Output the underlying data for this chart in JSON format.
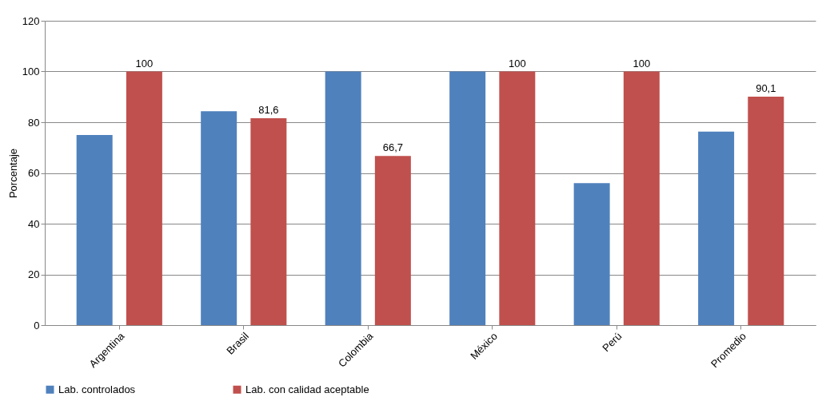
{
  "chart_data": {
    "type": "bar",
    "ylabel": "Porcentaje",
    "categories": [
      "Argentina",
      "Brasil",
      "Colombia",
      "México",
      "Perú",
      "Promedio"
    ],
    "series": [
      {
        "name": "Lab. controlados",
        "color": "#4f81bd",
        "values": [
          75,
          84.3,
          100,
          100,
          56,
          76.3
        ]
      },
      {
        "name": "Lab. con calidad aceptable",
        "color": "#c0504d",
        "values": [
          100,
          81.6,
          66.7,
          100,
          100,
          90.1
        ],
        "value_labels": [
          "100",
          "81,6",
          "66,7",
          "100",
          "100",
          "90,1"
        ]
      }
    ],
    "ylim": [
      0,
      120
    ],
    "yticks": [
      0,
      20,
      40,
      60,
      80,
      100,
      120
    ],
    "grid": "y",
    "legend": "bottom"
  }
}
